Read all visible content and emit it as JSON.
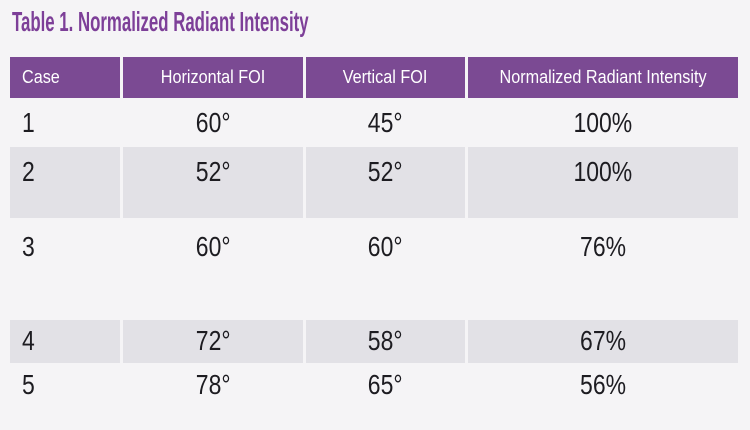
{
  "page": {
    "title": "Table 1. Normalized Radiant Intensity"
  },
  "colors": {
    "title_text": "#7d3f98",
    "header_bg": "#7b4a93",
    "header_text": "#ffffff",
    "row_light_bg": "#f5f4f6",
    "row_gray_bg": "#e2e1e6",
    "body_text": "#1d1c21",
    "page_bg": "#f5f4f6"
  },
  "table": {
    "columns": [
      "Case",
      "Horizontal FOI",
      "Vertical FOI",
      "Normalized Radiant Intensity"
    ],
    "rows": [
      {
        "case": "1",
        "horizontal_foi": "60°",
        "vertical_foi": "45°",
        "normalized_radiant_intensity": "100%"
      },
      {
        "case": "2",
        "horizontal_foi": "52°",
        "vertical_foi": "52°",
        "normalized_radiant_intensity": "100%"
      },
      {
        "case": "3",
        "horizontal_foi": "60°",
        "vertical_foi": "60°",
        "normalized_radiant_intensity": "76%"
      },
      {
        "case": "4",
        "horizontal_foi": "72°",
        "vertical_foi": "58°",
        "normalized_radiant_intensity": "67%"
      },
      {
        "case": "5",
        "horizontal_foi": "78°",
        "vertical_foi": "65°",
        "normalized_radiant_intensity": "56%"
      }
    ]
  }
}
